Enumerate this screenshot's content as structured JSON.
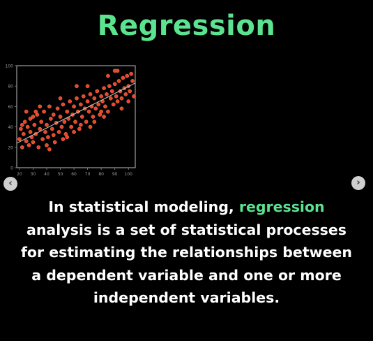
{
  "accent_color": "#5be38f",
  "title": "Regression",
  "navigation": {
    "prev_icon": "chevron-left-icon",
    "next_icon": "chevron-right-icon",
    "prev_glyph": "‹",
    "next_glyph": "›"
  },
  "description": {
    "before": "In statistical modeling, ",
    "highlight": "regression",
    "after": " analysis is a set of statistical processes for estimating the relationships between a dependent variable and one or more independent variables."
  },
  "chart_data": {
    "type": "scatter",
    "title": "",
    "xlabel": "",
    "ylabel": "",
    "x_ticks": [
      "20",
      "30",
      "40",
      "50",
      "60",
      "70",
      "80",
      "90",
      "100"
    ],
    "y_ticks": [
      "0",
      "20",
      "40",
      "60",
      "80",
      "100"
    ],
    "xlim": [
      18,
      105
    ],
    "ylim": [
      0,
      100
    ],
    "point_color": "#e8472a",
    "trend_line": {
      "x": [
        18,
        105
      ],
      "y": [
        24,
        83
      ],
      "color": "#cccccc"
    },
    "points": [
      [
        20,
        28
      ],
      [
        21,
        38
      ],
      [
        22,
        20
      ],
      [
        23,
        33
      ],
      [
        24,
        45
      ],
      [
        25,
        26
      ],
      [
        26,
        40
      ],
      [
        27,
        22
      ],
      [
        28,
        35
      ],
      [
        28,
        48
      ],
      [
        29,
        30
      ],
      [
        30,
        25
      ],
      [
        31,
        42
      ],
      [
        32,
        33
      ],
      [
        33,
        52
      ],
      [
        34,
        20
      ],
      [
        35,
        38
      ],
      [
        36,
        45
      ],
      [
        37,
        28
      ],
      [
        38,
        55
      ],
      [
        39,
        35
      ],
      [
        40,
        42
      ],
      [
        41,
        30
      ],
      [
        42,
        60
      ],
      [
        43,
        48
      ],
      [
        44,
        38
      ],
      [
        45,
        52
      ],
      [
        46,
        25
      ],
      [
        47,
        44
      ],
      [
        48,
        58
      ],
      [
        49,
        35
      ],
      [
        50,
        50
      ],
      [
        51,
        40
      ],
      [
        52,
        62
      ],
      [
        53,
        45
      ],
      [
        54,
        33
      ],
      [
        55,
        55
      ],
      [
        56,
        48
      ],
      [
        57,
        65
      ],
      [
        58,
        40
      ],
      [
        59,
        52
      ],
      [
        60,
        60
      ],
      [
        61,
        45
      ],
      [
        62,
        68
      ],
      [
        63,
        55
      ],
      [
        64,
        38
      ],
      [
        65,
        62
      ],
      [
        66,
        50
      ],
      [
        67,
        70
      ],
      [
        68,
        58
      ],
      [
        69,
        45
      ],
      [
        70,
        65
      ],
      [
        71,
        55
      ],
      [
        72,
        72
      ],
      [
        73,
        60
      ],
      [
        74,
        50
      ],
      [
        75,
        68
      ],
      [
        76,
        58
      ],
      [
        77,
        75
      ],
      [
        78,
        62
      ],
      [
        79,
        52
      ],
      [
        80,
        70
      ],
      [
        81,
        65
      ],
      [
        82,
        78
      ],
      [
        83,
        60
      ],
      [
        84,
        72
      ],
      [
        85,
        55
      ],
      [
        86,
        80
      ],
      [
        87,
        68
      ],
      [
        88,
        75
      ],
      [
        89,
        62
      ],
      [
        90,
        82
      ],
      [
        91,
        70
      ],
      [
        92,
        65
      ],
      [
        93,
        85
      ],
      [
        94,
        75
      ],
      [
        95,
        68
      ],
      [
        96,
        88
      ],
      [
        97,
        78
      ],
      [
        98,
        72
      ],
      [
        99,
        90
      ],
      [
        100,
        80
      ],
      [
        101,
        75
      ],
      [
        102,
        92
      ],
      [
        103,
        85
      ],
      [
        104,
        70
      ],
      [
        25,
        55
      ],
      [
        35,
        60
      ],
      [
        45,
        32
      ],
      [
        55,
        30
      ],
      [
        65,
        42
      ],
      [
        75,
        45
      ],
      [
        85,
        90
      ],
      [
        95,
        58
      ],
      [
        30,
        50
      ],
      [
        40,
        22
      ],
      [
        50,
        68
      ],
      [
        60,
        35
      ],
      [
        70,
        80
      ],
      [
        80,
        55
      ],
      [
        90,
        95
      ],
      [
        100,
        65
      ],
      [
        22,
        42
      ],
      [
        32,
        55
      ],
      [
        42,
        18
      ],
      [
        52,
        28
      ],
      [
        62,
        80
      ],
      [
        72,
        40
      ],
      [
        82,
        50
      ],
      [
        92,
        95
      ]
    ]
  }
}
